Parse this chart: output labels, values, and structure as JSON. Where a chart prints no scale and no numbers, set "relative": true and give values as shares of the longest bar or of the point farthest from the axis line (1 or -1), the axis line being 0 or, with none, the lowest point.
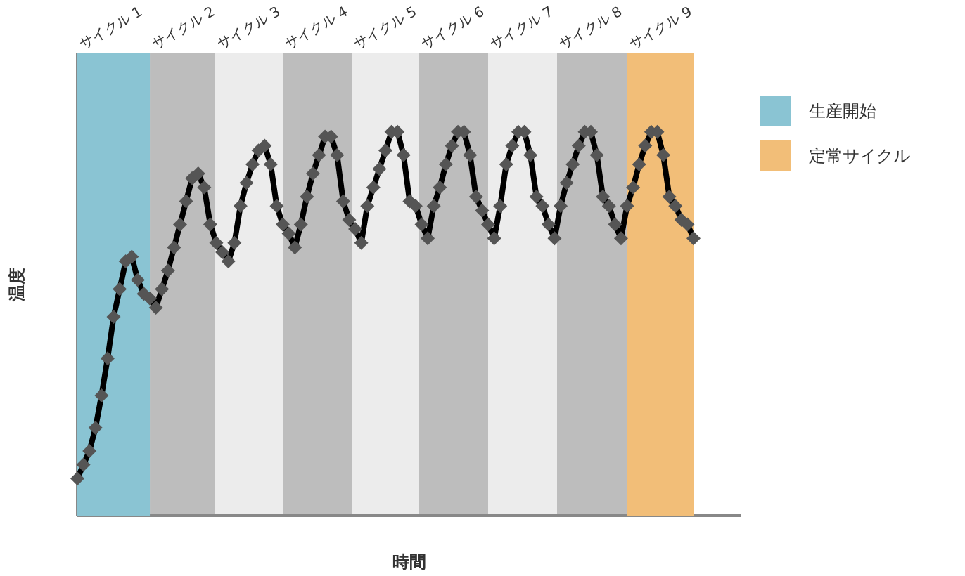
{
  "chart_data": {
    "type": "line",
    "relative": true,
    "xlabel": "時間",
    "ylabel": "温度",
    "legend": "top right",
    "categories": [
      null,
      null,
      null,
      null,
      null,
      null,
      null,
      null,
      null,
      null,
      null,
      null,
      null,
      null,
      null,
      null,
      null,
      null,
      null,
      null,
      null,
      null,
      null,
      null,
      null,
      null,
      null,
      null,
      null,
      null,
      null,
      null,
      null,
      null,
      null,
      null,
      null,
      null,
      null,
      null,
      null,
      null,
      null,
      null,
      null,
      null,
      null,
      null,
      null,
      null,
      null,
      null,
      null,
      null,
      null,
      null,
      null,
      null,
      null,
      null,
      null,
      null,
      null,
      null,
      null,
      null,
      null,
      null,
      null,
      null,
      null,
      null,
      null,
      null,
      null,
      null,
      null,
      null,
      null,
      null,
      null,
      null,
      null,
      null,
      null,
      null,
      null,
      null,
      null,
      null,
      null,
      null,
      null,
      null,
      null,
      null,
      null,
      null,
      null,
      null,
      null,
      null,
      null
    ],
    "annotations": [
      "サイクル 1",
      "サイクル 2",
      "サイクル 3",
      "サイクル 4",
      "サイクル 5",
      "サイクル 6",
      "サイクル 7",
      "サイクル 8",
      "サイクル 9"
    ],
    "series": [
      {
        "type": "area",
        "name": "生産開始",
        "color": "#8ac4d3",
        "values": [
          1,
          1,
          1,
          1,
          1,
          1,
          1,
          1,
          1,
          1,
          1,
          1,
          1,
          null,
          null,
          null,
          null,
          null,
          null,
          null,
          null,
          null,
          null,
          null,
          null,
          null,
          null,
          null,
          null,
          null,
          null,
          null,
          null,
          null,
          null,
          null,
          null,
          null,
          null,
          null,
          null,
          null,
          null,
          null,
          null,
          null,
          null,
          null,
          null,
          null,
          null,
          null,
          null,
          null,
          null,
          null,
          null,
          null,
          null,
          null,
          null,
          null,
          null,
          null,
          null,
          null,
          null,
          null,
          null,
          null,
          null,
          null,
          null,
          null,
          null,
          null,
          null,
          null,
          null,
          null,
          null,
          null,
          null,
          null,
          null,
          null,
          null,
          null,
          null,
          null,
          null,
          null,
          null,
          null,
          null,
          null,
          null,
          null,
          null,
          null,
          null,
          null,
          null
        ]
      },
      {
        "type": "area",
        "name": "定常サイクル",
        "color": "#f2be78",
        "values": [
          null,
          null,
          null,
          null,
          null,
          null,
          null,
          null,
          null,
          null,
          null,
          null,
          null,
          null,
          null,
          null,
          null,
          null,
          null,
          null,
          null,
          null,
          null,
          null,
          null,
          null,
          null,
          null,
          null,
          null,
          null,
          null,
          null,
          null,
          null,
          null,
          null,
          null,
          null,
          null,
          null,
          null,
          null,
          null,
          null,
          null,
          null,
          null,
          null,
          null,
          null,
          null,
          null,
          null,
          null,
          null,
          null,
          null,
          null,
          null,
          null,
          null,
          null,
          null,
          null,
          null,
          null,
          null,
          null,
          null,
          null,
          null,
          null,
          null,
          null,
          null,
          null,
          null,
          null,
          null,
          null,
          null,
          null,
          null,
          null,
          null,
          null,
          null,
          null,
          null,
          null,
          1,
          1,
          1,
          1,
          1,
          1,
          1,
          1,
          1,
          1,
          1,
          1
        ]
      },
      {
        "color": "#000000",
        "marker": "diamond",
        "values": [
          0.08,
          0.11,
          0.14,
          0.19,
          0.26,
          0.34,
          0.43,
          0.49,
          0.55,
          0.56,
          0.51,
          0.48,
          0.47,
          0.45,
          0.49,
          0.53,
          0.58,
          0.63,
          0.68,
          0.73,
          0.74,
          0.71,
          0.63,
          0.59,
          0.57,
          0.55,
          0.59,
          0.67,
          0.72,
          0.76,
          0.79,
          0.8,
          0.76,
          0.67,
          0.63,
          0.61,
          0.58,
          0.63,
          0.69,
          0.74,
          0.78,
          0.82,
          0.82,
          0.78,
          0.68,
          0.64,
          0.62,
          0.59,
          0.67,
          0.71,
          0.75,
          0.79,
          0.83,
          0.83,
          0.78,
          0.68,
          0.67,
          0.63,
          0.6,
          0.67,
          0.71,
          0.76,
          0.8,
          0.83,
          0.83,
          0.78,
          0.69,
          0.66,
          0.63,
          0.6,
          0.67,
          0.76,
          0.8,
          0.83,
          0.83,
          0.78,
          0.69,
          0.67,
          0.63,
          0.6,
          0.67,
          0.72,
          0.76,
          0.8,
          0.83,
          0.83,
          0.78,
          0.69,
          0.67,
          0.63,
          0.6,
          0.67,
          0.71,
          0.76,
          0.8,
          0.83,
          0.83,
          0.78,
          0.69,
          0.67,
          0.64,
          0.63,
          0.6
        ]
      }
    ]
  }
}
